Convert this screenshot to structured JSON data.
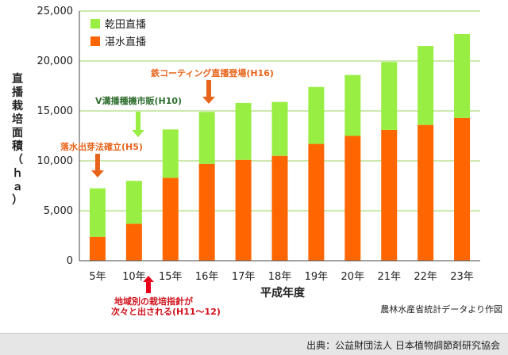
{
  "chart_data": {
    "type": "bar",
    "stacked": true,
    "categories": [
      "5年",
      "10年",
      "15年",
      "16年",
      "17年",
      "18年",
      "19年",
      "20年",
      "21年",
      "22年",
      "23年"
    ],
    "series": [
      {
        "name": "湛水直播",
        "color": "#ff6600",
        "values": [
          2400,
          3700,
          8300,
          9700,
          10100,
          10500,
          11700,
          12500,
          13100,
          13600,
          14300
        ]
      },
      {
        "name": "乾田直播",
        "color": "#99ee44",
        "values": [
          4850,
          4300,
          4850,
          5200,
          5700,
          5400,
          5700,
          6100,
          6800,
          7900,
          8400
        ]
      }
    ],
    "ylim": [
      0,
      25000
    ],
    "yticks": [
      0,
      5000,
      10000,
      15000,
      20000,
      25000
    ],
    "ytick_labels": [
      "0",
      "5,000",
      "10,000",
      "15,000",
      "20,000",
      "25,000"
    ],
    "ylabel": "直播栽培面積（ｈａ）",
    "xlabel": "平成年度",
    "grid": true,
    "legend_position": "top-left",
    "annotations": [
      {
        "text": "落水出芽法確立(H5)",
        "category": 0,
        "color": "#e8641b",
        "arrow_color": "#e8641b"
      },
      {
        "text": "V溝播種機市販(H10)",
        "category": 1,
        "color": "#2f6e2f",
        "arrow_color": "#99ee44"
      },
      {
        "text": "鉄コーティング直播登場(H16)",
        "category": 3,
        "color": "#e8641b",
        "arrow_color": "#e8641b"
      },
      {
        "text_lines": [
          "地域別の栽培指針が",
          "次々と出される(H11～12)"
        ],
        "category": 1,
        "color": "#d0101a",
        "arrow_color": "#e8001a"
      }
    ],
    "source_note": "農林水産省統計データより作図"
  },
  "footer": {
    "text": "出典：公益財団法人 日本植物調節剤研究協会"
  }
}
